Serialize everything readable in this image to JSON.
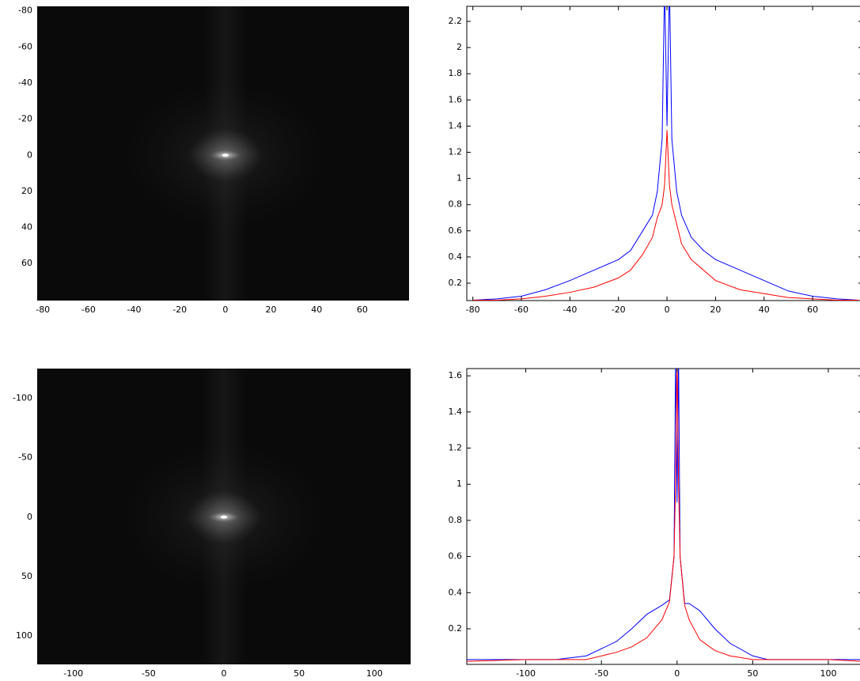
{
  "chart_data": [
    {
      "type": "image",
      "xlim": [
        -82.5,
        80.5
      ],
      "ylim": [
        -82.5,
        80.5
      ],
      "ydir": "reverse",
      "xticks": [
        -80,
        -60,
        -40,
        -20,
        0,
        20,
        40,
        60
      ],
      "yticks": [
        -80,
        -60,
        -40,
        -20,
        0,
        20,
        40,
        60
      ],
      "peak": {
        "x": 0,
        "y": 0
      }
    },
    {
      "type": "line",
      "xlim": [
        -82.5,
        80.5
      ],
      "ylim": [
        0.067,
        2.315
      ],
      "xticks": [
        -80,
        -60,
        -40,
        -20,
        0,
        20,
        40,
        60
      ],
      "yticks": [
        0.2,
        0.4,
        0.6,
        0.8,
        1,
        1.2,
        1.4,
        1.6,
        1.8,
        2,
        2.2
      ],
      "x": [
        -80,
        -70,
        -60,
        -50,
        -40,
        -30,
        -20,
        -15,
        -10,
        -6,
        -4,
        -2,
        -1,
        0,
        1,
        2,
        4,
        6,
        10,
        15,
        20,
        30,
        40,
        50,
        60,
        70,
        79
      ],
      "series": [
        {
          "color": "#0000ff",
          "values": [
            0.07,
            0.08,
            0.1,
            0.15,
            0.22,
            0.3,
            0.38,
            0.45,
            0.6,
            0.72,
            0.9,
            1.3,
            2.5,
            1.4,
            2.5,
            1.3,
            0.9,
            0.72,
            0.55,
            0.45,
            0.38,
            0.3,
            0.22,
            0.14,
            0.1,
            0.08,
            0.07
          ]
        },
        {
          "color": "#ff0000",
          "values": [
            0.07,
            0.07,
            0.08,
            0.1,
            0.13,
            0.17,
            0.24,
            0.3,
            0.42,
            0.55,
            0.7,
            0.8,
            0.95,
            1.37,
            0.95,
            0.8,
            0.65,
            0.5,
            0.38,
            0.3,
            0.22,
            0.15,
            0.12,
            0.09,
            0.08,
            0.07,
            0.07
          ]
        }
      ]
    },
    {
      "type": "image",
      "xlim": [
        -124,
        124
      ],
      "ylim": [
        -125,
        124
      ],
      "ydir": "reverse",
      "xticks": [
        -100,
        -50,
        0,
        50,
        100
      ],
      "yticks": [
        -100,
        -50,
        0,
        50,
        100
      ],
      "peak": {
        "x": 0,
        "y": 0
      }
    },
    {
      "type": "line",
      "xlim": [
        -139,
        122.5
      ],
      "ylim": [
        0.003,
        1.64
      ],
      "xticks": [
        -100,
        -50,
        0,
        50,
        100
      ],
      "yticks": [
        0.2,
        0.4,
        0.6,
        0.8,
        1,
        1.2,
        1.4,
        1.6
      ],
      "x": [
        -139,
        -100,
        -80,
        -60,
        -40,
        -30,
        -20,
        -10,
        -5,
        -2,
        -1,
        0,
        1,
        2,
        5,
        8,
        15,
        25,
        35,
        50,
        60,
        100,
        122
      ],
      "series": [
        {
          "color": "#0000ff",
          "values": [
            0.03,
            0.03,
            0.03,
            0.05,
            0.13,
            0.2,
            0.28,
            0.33,
            0.36,
            0.6,
            1.7,
            0.9,
            1.7,
            0.6,
            0.34,
            0.34,
            0.3,
            0.2,
            0.12,
            0.05,
            0.03,
            0.03,
            0.03
          ]
        },
        {
          "color": "#ff0000",
          "values": [
            0.02,
            0.03,
            0.03,
            0.03,
            0.07,
            0.1,
            0.15,
            0.25,
            0.35,
            0.6,
            1.0,
            1.7,
            1.0,
            0.6,
            0.33,
            0.25,
            0.14,
            0.08,
            0.05,
            0.03,
            0.03,
            0.03,
            0.02
          ]
        }
      ]
    }
  ]
}
